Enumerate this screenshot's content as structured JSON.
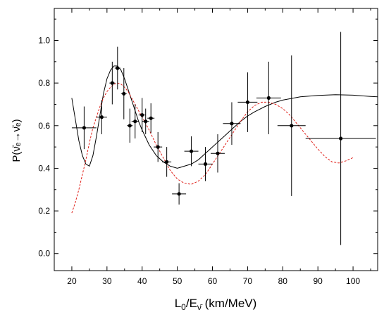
{
  "chart_data": {
    "type": "scatter",
    "xlabel": "L",
    "xlabel_sub0": "0",
    "xlabel_slash": "/E",
    "xlabel_sub_nu": "ν̄",
    "xlabel_units": " (km/MeV)",
    "ylabel": "P(ν̄ₑ→ν̄ₑ)",
    "xlim": [
      15,
      107
    ],
    "ylim": [
      -0.08,
      1.15
    ],
    "xticks": [
      20,
      30,
      40,
      50,
      60,
      70,
      80,
      90,
      100
    ],
    "yticks": [
      0.0,
      0.2,
      0.4,
      0.6,
      0.8,
      1.0
    ],
    "grid": false,
    "series": [
      {
        "kind": "data_points_with_errors",
        "color": "#000000",
        "points": [
          {
            "x": 23.5,
            "y": 0.59,
            "xerr": 3.5,
            "yerr": 0.1
          },
          {
            "x": 28.5,
            "y": 0.64,
            "xerr": 1.5,
            "yerr": 0.08
          },
          {
            "x": 31.5,
            "y": 0.8,
            "xerr": 0.8,
            "yerr": 0.1
          },
          {
            "x": 33.0,
            "y": 0.87,
            "xerr": 0.8,
            "yerr": 0.1
          },
          {
            "x": 34.8,
            "y": 0.75,
            "xerr": 0.8,
            "yerr": 0.12
          },
          {
            "x": 36.5,
            "y": 0.6,
            "xerr": 0.8,
            "yerr": 0.08
          },
          {
            "x": 38.0,
            "y": 0.62,
            "xerr": 1.0,
            "yerr": 0.08
          },
          {
            "x": 40.0,
            "y": 0.65,
            "xerr": 1.0,
            "yerr": 0.08
          },
          {
            "x": 41.0,
            "y": 0.62,
            "xerr": 1.0,
            "yerr": 0.06
          },
          {
            "x": 42.5,
            "y": 0.635,
            "xerr": 1.0,
            "yerr": 0.07
          },
          {
            "x": 44.5,
            "y": 0.5,
            "xerr": 1.2,
            "yerr": 0.07
          },
          {
            "x": 47.0,
            "y": 0.43,
            "xerr": 1.3,
            "yerr": 0.07
          },
          {
            "x": 50.5,
            "y": 0.28,
            "xerr": 2.0,
            "yerr": 0.05
          },
          {
            "x": 54.0,
            "y": 0.48,
            "xerr": 2.0,
            "yerr": 0.07
          },
          {
            "x": 58.0,
            "y": 0.42,
            "xerr": 2.0,
            "yerr": 0.08
          },
          {
            "x": 61.5,
            "y": 0.47,
            "xerr": 2.0,
            "yerr": 0.09
          },
          {
            "x": 65.5,
            "y": 0.61,
            "xerr": 2.5,
            "yerr": 0.1
          },
          {
            "x": 70.0,
            "y": 0.71,
            "xerr": 2.8,
            "yerr": 0.14
          },
          {
            "x": 76.0,
            "y": 0.73,
            "xerr": 3.5,
            "yerr": 0.17
          },
          {
            "x": 82.5,
            "y": 0.6,
            "xerr": 4.0,
            "yerr": 0.33
          },
          {
            "x": 96.5,
            "y": 0.54,
            "xerr": 10.0,
            "yerr": 0.5
          }
        ]
      },
      {
        "kind": "curve",
        "style": "solid",
        "color": "#000000",
        "x": [
          20,
          21,
          22,
          23,
          24,
          25,
          26,
          27,
          28,
          29,
          30,
          31,
          32,
          33,
          34,
          35,
          36,
          37,
          38,
          39,
          40,
          42,
          44,
          46,
          48,
          50,
          52,
          54,
          56,
          58,
          60,
          62,
          64,
          66,
          68,
          70,
          72,
          75,
          78,
          80,
          85,
          90,
          95,
          100,
          105,
          107
        ],
        "y": [
          0.73,
          0.63,
          0.53,
          0.46,
          0.42,
          0.41,
          0.46,
          0.55,
          0.65,
          0.75,
          0.82,
          0.86,
          0.88,
          0.88,
          0.86,
          0.82,
          0.77,
          0.72,
          0.67,
          0.62,
          0.58,
          0.51,
          0.46,
          0.43,
          0.41,
          0.4,
          0.41,
          0.42,
          0.44,
          0.47,
          0.5,
          0.53,
          0.56,
          0.59,
          0.62,
          0.645,
          0.665,
          0.69,
          0.71,
          0.72,
          0.735,
          0.742,
          0.745,
          0.743,
          0.737,
          0.735
        ]
      },
      {
        "kind": "curve",
        "style": "dashed",
        "color": "#e0201a",
        "x": [
          20,
          21,
          22,
          23,
          24,
          25,
          26,
          27,
          28,
          29,
          30,
          31,
          32,
          33,
          34,
          35,
          36,
          37,
          38,
          39,
          40,
          42,
          44,
          46,
          48,
          50,
          52,
          54,
          56,
          58,
          60,
          62,
          64,
          66,
          68,
          70,
          72,
          74,
          76,
          78,
          80,
          82,
          84,
          86,
          88,
          90,
          92,
          94,
          96,
          98,
          100
        ],
        "y": [
          0.19,
          0.24,
          0.3,
          0.37,
          0.44,
          0.52,
          0.59,
          0.64,
          0.69,
          0.73,
          0.76,
          0.78,
          0.795,
          0.8,
          0.795,
          0.78,
          0.76,
          0.73,
          0.7,
          0.67,
          0.64,
          0.58,
          0.51,
          0.45,
          0.39,
          0.35,
          0.33,
          0.325,
          0.34,
          0.37,
          0.42,
          0.47,
          0.52,
          0.57,
          0.62,
          0.665,
          0.695,
          0.71,
          0.71,
          0.7,
          0.68,
          0.65,
          0.61,
          0.57,
          0.53,
          0.49,
          0.455,
          0.43,
          0.425,
          0.435,
          0.45
        ]
      }
    ]
  }
}
